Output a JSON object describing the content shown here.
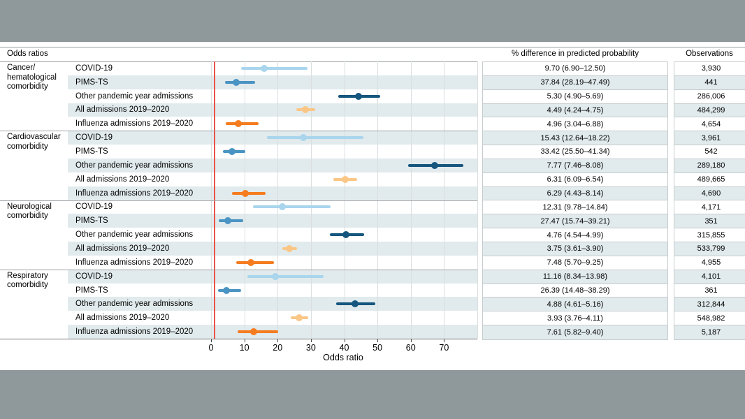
{
  "header": {
    "odds_ratios": "Odds ratios",
    "pct_diff": "% difference in predicted probability",
    "observations": "Observations"
  },
  "colors": {
    "frame_bar": "#8f989b",
    "band": "#e1eaec",
    "grid": "#dadedf",
    "separator": "#9aa0a2",
    "reference_red": "#e85348",
    "covid19": "#a9d5ed",
    "pims_ts": "#4a94c4",
    "other_pandemic": "#15567e",
    "all_admissions": "#fbc787",
    "influenza": "#f57c1f"
  },
  "chart_data": {
    "type": "forest",
    "xlabel": "Odds ratio",
    "xlim": [
      0,
      80
    ],
    "x_ticks": [
      0,
      10,
      20,
      30,
      40,
      50,
      60,
      70
    ],
    "reference_line": 1,
    "legend_position": "none",
    "grid": true,
    "groups": [
      {
        "label": "Cancer/hematological comorbidity",
        "label_lines": [
          "Cancer/",
          "hematological",
          "comorbidity"
        ],
        "rows": [
          {
            "label": "COVID-19",
            "series": "covid19",
            "or": 16.0,
            "ci": [
              9.0,
              29.0
            ],
            "pct": "9.70 (6.90–12.50)",
            "obs": "3,930"
          },
          {
            "label": "PIMS-TS",
            "series": "pims_ts",
            "or": 7.6,
            "ci": [
              4.3,
              13.2
            ],
            "pct": "37.84 (28.19–47.49)",
            "obs": "441"
          },
          {
            "label": "Other pandemic year admissions",
            "series": "other_pandemic",
            "or": 44.3,
            "ci": [
              38.2,
              50.9
            ],
            "pct": "5.30 (4.90–5.69)",
            "obs": "286,006"
          },
          {
            "label": "All admissions 2019–2020",
            "series": "all_admissions",
            "or": 28.4,
            "ci": [
              25.7,
              31.3
            ],
            "pct": "4.49 (4.24–4.75)",
            "obs": "484,299"
          },
          {
            "label": "Influenza admissions 2019–2020",
            "series": "influenza",
            "or": 8.2,
            "ci": [
              4.5,
              14.3
            ],
            "pct": "4.96 (3.04–6.88)",
            "obs": "4,654"
          }
        ]
      },
      {
        "label": "Cardiovascular comorbidity",
        "label_lines": [
          "Cardiovascular",
          "comorbidity"
        ],
        "rows": [
          {
            "label": "COVID-19",
            "series": "covid19",
            "or": 27.7,
            "ci": [
              16.7,
              45.7
            ],
            "pct": "15.43 (12.64–18.22)",
            "obs": "3,961"
          },
          {
            "label": "PIMS-TS",
            "series": "pims_ts",
            "or": 6.4,
            "ci": [
              3.6,
              10.3
            ],
            "pct": "33.42 (25.50–41.34)",
            "obs": "542"
          },
          {
            "label": "Other pandemic year admissions",
            "series": "other_pandemic",
            "or": 67.2,
            "ci": [
              59.2,
              75.9
            ],
            "pct": "7.77 (7.46–8.08)",
            "obs": "289,180"
          },
          {
            "label": "All admissions 2019–2020",
            "series": "all_admissions",
            "or": 40.3,
            "ci": [
              36.8,
              43.9
            ],
            "pct": "6.31 (6.09–6.54)",
            "obs": "489,665"
          },
          {
            "label": "Influenza admissions 2019–2020",
            "series": "influenza",
            "or": 10.3,
            "ci": [
              6.2,
              16.4
            ],
            "pct": "6.29 (4.43–8.14)",
            "obs": "4,690"
          }
        ]
      },
      {
        "label": "Neurological comorbidity",
        "label_lines": [
          "Neurological",
          "comorbidity"
        ],
        "rows": [
          {
            "label": "COVID-19",
            "series": "covid19",
            "or": 21.4,
            "ci": [
              12.5,
              36.0
            ],
            "pct": "12.31 (9.78–14.84)",
            "obs": "4,171"
          },
          {
            "label": "PIMS-TS",
            "series": "pims_ts",
            "or": 5.0,
            "ci": [
              2.4,
              9.7
            ],
            "pct": "27.47 (15.74–39.21)",
            "obs": "351"
          },
          {
            "label": "Other pandemic year admissions",
            "series": "other_pandemic",
            "or": 40.5,
            "ci": [
              35.6,
              46.0
            ],
            "pct": "4.76 (4.54–4.99)",
            "obs": "315,855"
          },
          {
            "label": "All admissions 2019–2020",
            "series": "all_admissions",
            "or": 23.5,
            "ci": [
              21.4,
              25.8
            ],
            "pct": "3.75 (3.61–3.90)",
            "obs": "533,799"
          },
          {
            "label": "Influenza admissions 2019–2020",
            "series": "influenza",
            "or": 12.0,
            "ci": [
              7.5,
              18.9
            ],
            "pct": "7.48 (5.70–9.25)",
            "obs": "4,955"
          }
        ]
      },
      {
        "label": "Respiratory comorbidity",
        "label_lines": [
          "Respiratory",
          "comorbidity"
        ],
        "rows": [
          {
            "label": "COVID-19",
            "series": "covid19",
            "or": 19.3,
            "ci": [
              11.0,
              33.9
            ],
            "pct": "11.16 (8.34–13.98)",
            "obs": "4,101"
          },
          {
            "label": "PIMS-TS",
            "series": "pims_ts",
            "or": 4.7,
            "ci": [
              2.0,
              9.0
            ],
            "pct": "26.39 (14.48–38.29)",
            "obs": "361"
          },
          {
            "label": "Other pandemic year admissions",
            "series": "other_pandemic",
            "or": 43.2,
            "ci": [
              37.6,
              49.4
            ],
            "pct": "4.88 (4.61–5.16)",
            "obs": "312,844"
          },
          {
            "label": "All admissions 2019–2020",
            "series": "all_admissions",
            "or": 26.5,
            "ci": [
              24.0,
              29.1
            ],
            "pct": "3.93 (3.76–4.11)",
            "obs": "548,982"
          },
          {
            "label": "Influenza admissions 2019–2020",
            "series": "influenza",
            "or": 12.9,
            "ci": [
              8.0,
              20.2
            ],
            "pct": "7.61 (5.82–9.40)",
            "obs": "5,187"
          }
        ]
      }
    ]
  }
}
